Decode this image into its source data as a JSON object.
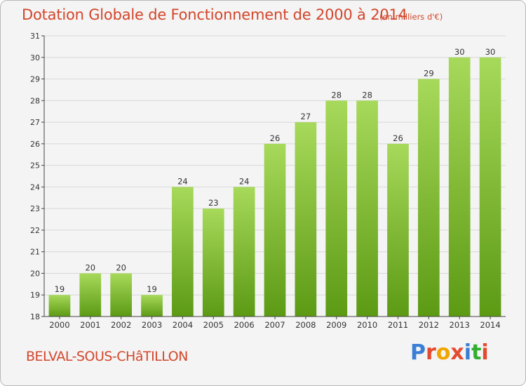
{
  "title": "Dotation Globale de Fonctionnement de 2000 à 2014",
  "unit": "(en milliers d'€)",
  "commune": "BELVAL-SOUS-CHâTILLON",
  "logo": {
    "text": "Proxiti",
    "letter_colors": [
      "#3a7fd5",
      "#e44a2f",
      "#f0a500",
      "#e44a2f",
      "#3a7fd5",
      "#2fae2f",
      "#e44a2f"
    ]
  },
  "colors": {
    "bar_top": "#a7d95a",
    "bar_bottom": "#5c9a14",
    "axis": "#444444",
    "grid": "#d8d8d8",
    "text": "#333333"
  },
  "chart_data": {
    "type": "bar",
    "categories": [
      "2000",
      "2001",
      "2002",
      "2003",
      "2004",
      "2005",
      "2006",
      "2007",
      "2008",
      "2009",
      "2010",
      "2011",
      "2012",
      "2013",
      "2014"
    ],
    "values": [
      19,
      20,
      20,
      19,
      24,
      23,
      24,
      26,
      27,
      28,
      28,
      26,
      29,
      30,
      30
    ],
    "value_labels": [
      "19",
      "20",
      "20",
      "19",
      "24",
      "23",
      "24",
      "26",
      "27",
      "28",
      "28",
      "26",
      "29",
      "30",
      "30"
    ],
    "ylim": [
      18,
      31
    ],
    "yticks": [
      18,
      19,
      20,
      21,
      22,
      23,
      24,
      25,
      26,
      27,
      28,
      29,
      30,
      31
    ],
    "grid": true
  }
}
